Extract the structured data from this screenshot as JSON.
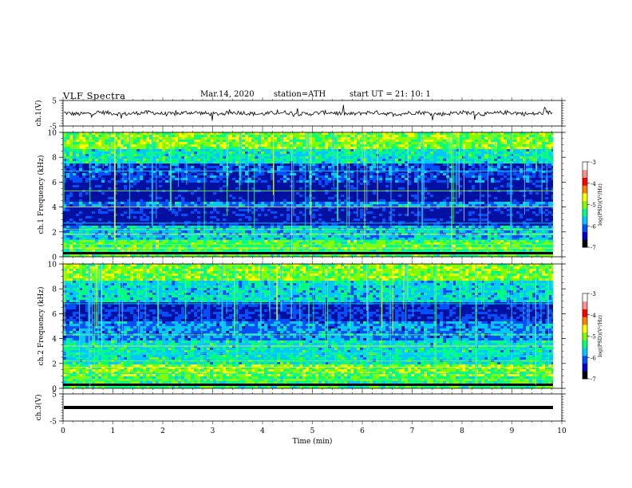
{
  "header": {
    "title": "VLF  Spectra",
    "date": "Mar.14, 2020",
    "station": "station=ATH",
    "start": "start  UT  =   21: 10: 1"
  },
  "colorbar": {
    "ticks": [
      "-3",
      "-4",
      "-5",
      "-6",
      "-7"
    ],
    "label": "log(PSD)(V²/Hz)",
    "colors": [
      "#000000",
      "#0000c8",
      "#0050ff",
      "#00c8ff",
      "#00ff7f",
      "#7fff00",
      "#ffff00",
      "#ff8000",
      "#ff0000",
      "#ff9090",
      "#ffffff"
    ]
  },
  "chart_data": [
    {
      "type": "line",
      "title": "",
      "ylabel": "ch.1(V)",
      "ylim": [
        -5,
        5
      ],
      "yticks": [
        "5",
        "-5"
      ],
      "description_values_note": "",
      "baseline": 0
    },
    {
      "type": "heatmap",
      "ylabel": "ch.1  Frequency  (kHz)",
      "ylim": [
        0,
        10
      ],
      "yticks": [
        "10",
        "8",
        "6",
        "4",
        "2",
        "0"
      ],
      "zlim": [
        -7,
        -3
      ],
      "zlabel": "log(PSD)(V²/Hz)"
    },
    {
      "type": "heatmap",
      "ylabel": "ch.2  Frequency  (kHz)",
      "ylim": [
        0,
        10
      ],
      "yticks": [
        "10",
        "8",
        "6",
        "4",
        "2",
        "0"
      ],
      "zlim": [
        -7,
        -3
      ],
      "zlabel": "log(PSD)(V²/Hz)"
    },
    {
      "type": "line",
      "ylabel": "ch.3(V)",
      "ylim": [
        -5,
        5
      ],
      "yticks": [
        "5",
        "-5"
      ],
      "baseline": 0
    }
  ],
  "xaxis": {
    "label": "Time  (min)",
    "xlim": [
      0,
      10
    ],
    "ticks": [
      "0",
      "1",
      "2",
      "3",
      "4",
      "5",
      "6",
      "7",
      "8",
      "9",
      "10"
    ]
  }
}
